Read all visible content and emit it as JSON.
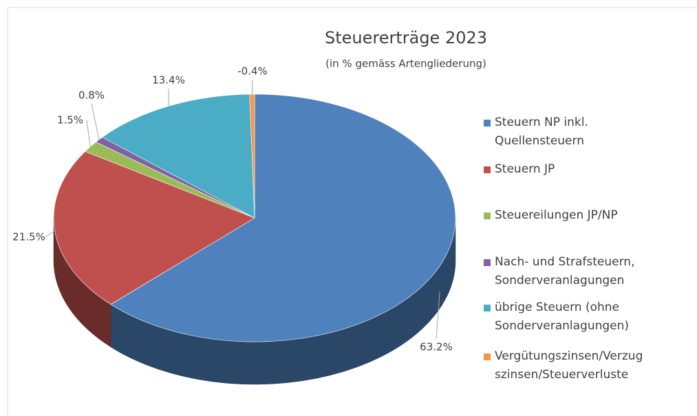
{
  "chart_data": {
    "type": "pie3d",
    "title": "Steuererträge 2023",
    "subtitle": "(in % gemäss Artengliederung)",
    "categories": [
      "Steuern NP inkl. Quellensteuern",
      "Steuern JP",
      "Steuereilungen JP/NP",
      "Nach- und Strafsteuern, Sonderveranlagungen",
      "übrige Steuern (ohne Sonderveranlagungen)",
      "Vergütungszinsen/Verzugszinsen/Steuerverluste"
    ],
    "values": [
      63.2,
      21.5,
      1.5,
      0.8,
      13.4,
      -0.4
    ],
    "value_labels": [
      "63.2%",
      "21.5%",
      "1.5%",
      "0.8%",
      "13.4%",
      "-0.4%"
    ],
    "colors": [
      "#4f81bd",
      "#c0504d",
      "#9bbb59",
      "#8064a2",
      "#4bacc6",
      "#f79646"
    ],
    "legend": "right"
  }
}
